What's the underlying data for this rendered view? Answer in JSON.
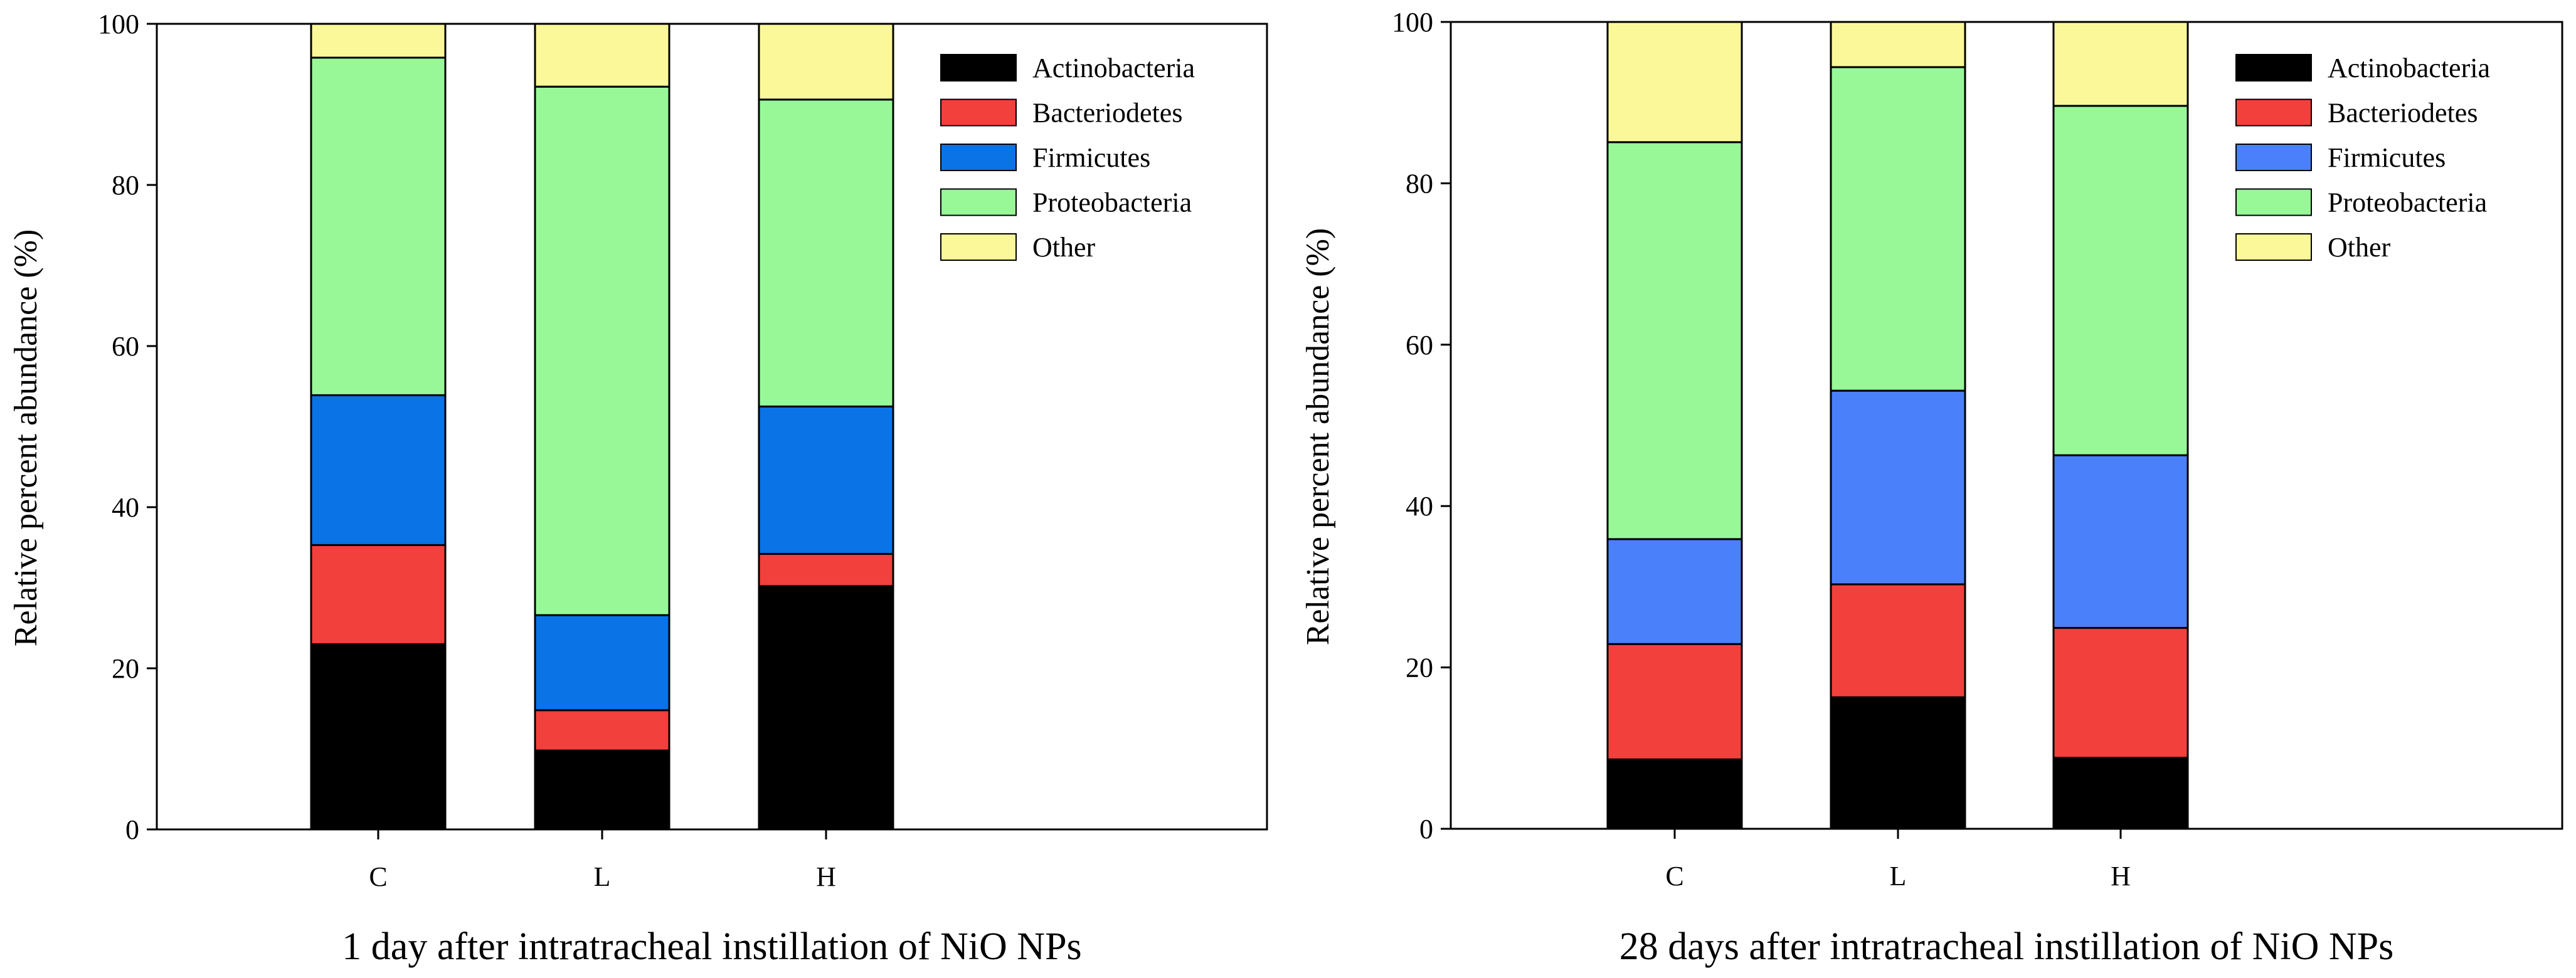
{
  "chart_data": [
    {
      "type": "bar",
      "stacked": true,
      "caption": "1 day after intratracheal instillation of NiO NPs",
      "ylabel": "Relative percent abundance (%)",
      "xlabel": "",
      "ylim": [
        0,
        100
      ],
      "yticks": [
        "0",
        "20",
        "40",
        "60",
        "80",
        "100"
      ],
      "categories": [
        "C",
        "L",
        "H"
      ],
      "legend_position": "top-right",
      "series": [
        {
          "name": "Actinobacteria",
          "color": "#000000",
          "values": [
            23.0,
            9.8,
            30.2
          ]
        },
        {
          "name": "Bacteriodetes",
          "color": "#f2403c",
          "values": [
            12.3,
            5.0,
            4.0
          ]
        },
        {
          "name": "Firmicutes",
          "color": "#0a73e6",
          "values": [
            18.6,
            11.8,
            18.3
          ]
        },
        {
          "name": "Proteobacteria",
          "color": "#98f898",
          "values": [
            41.9,
            65.6,
            38.1
          ]
        },
        {
          "name": "Other",
          "color": "#fbf89a",
          "values": [
            4.2,
            7.8,
            9.4
          ]
        }
      ]
    },
    {
      "type": "bar",
      "stacked": true,
      "caption": "28 days after intratracheal instillation of NiO NPs",
      "ylabel": "Relative percent abundance (%)",
      "xlabel": "",
      "ylim": [
        0,
        100
      ],
      "yticks": [
        "0",
        "20",
        "40",
        "60",
        "80",
        "100"
      ],
      "categories": [
        "C",
        "L",
        "H"
      ],
      "legend_position": "top-right",
      "series": [
        {
          "name": "Actinobacteria",
          "color": "#000000",
          "values": [
            8.6,
            16.3,
            8.8
          ]
        },
        {
          "name": "Bacteriodetes",
          "color": "#f2403c",
          "values": [
            14.3,
            14.0,
            16.1
          ]
        },
        {
          "name": "Firmicutes",
          "color": "#4a80fa",
          "values": [
            13.0,
            24.0,
            21.4
          ]
        },
        {
          "name": "Proteobacteria",
          "color": "#98f898",
          "values": [
            49.2,
            40.1,
            43.3
          ]
        },
        {
          "name": "Other",
          "color": "#fbf89a",
          "values": [
            14.9,
            5.6,
            10.4
          ]
        }
      ]
    }
  ]
}
